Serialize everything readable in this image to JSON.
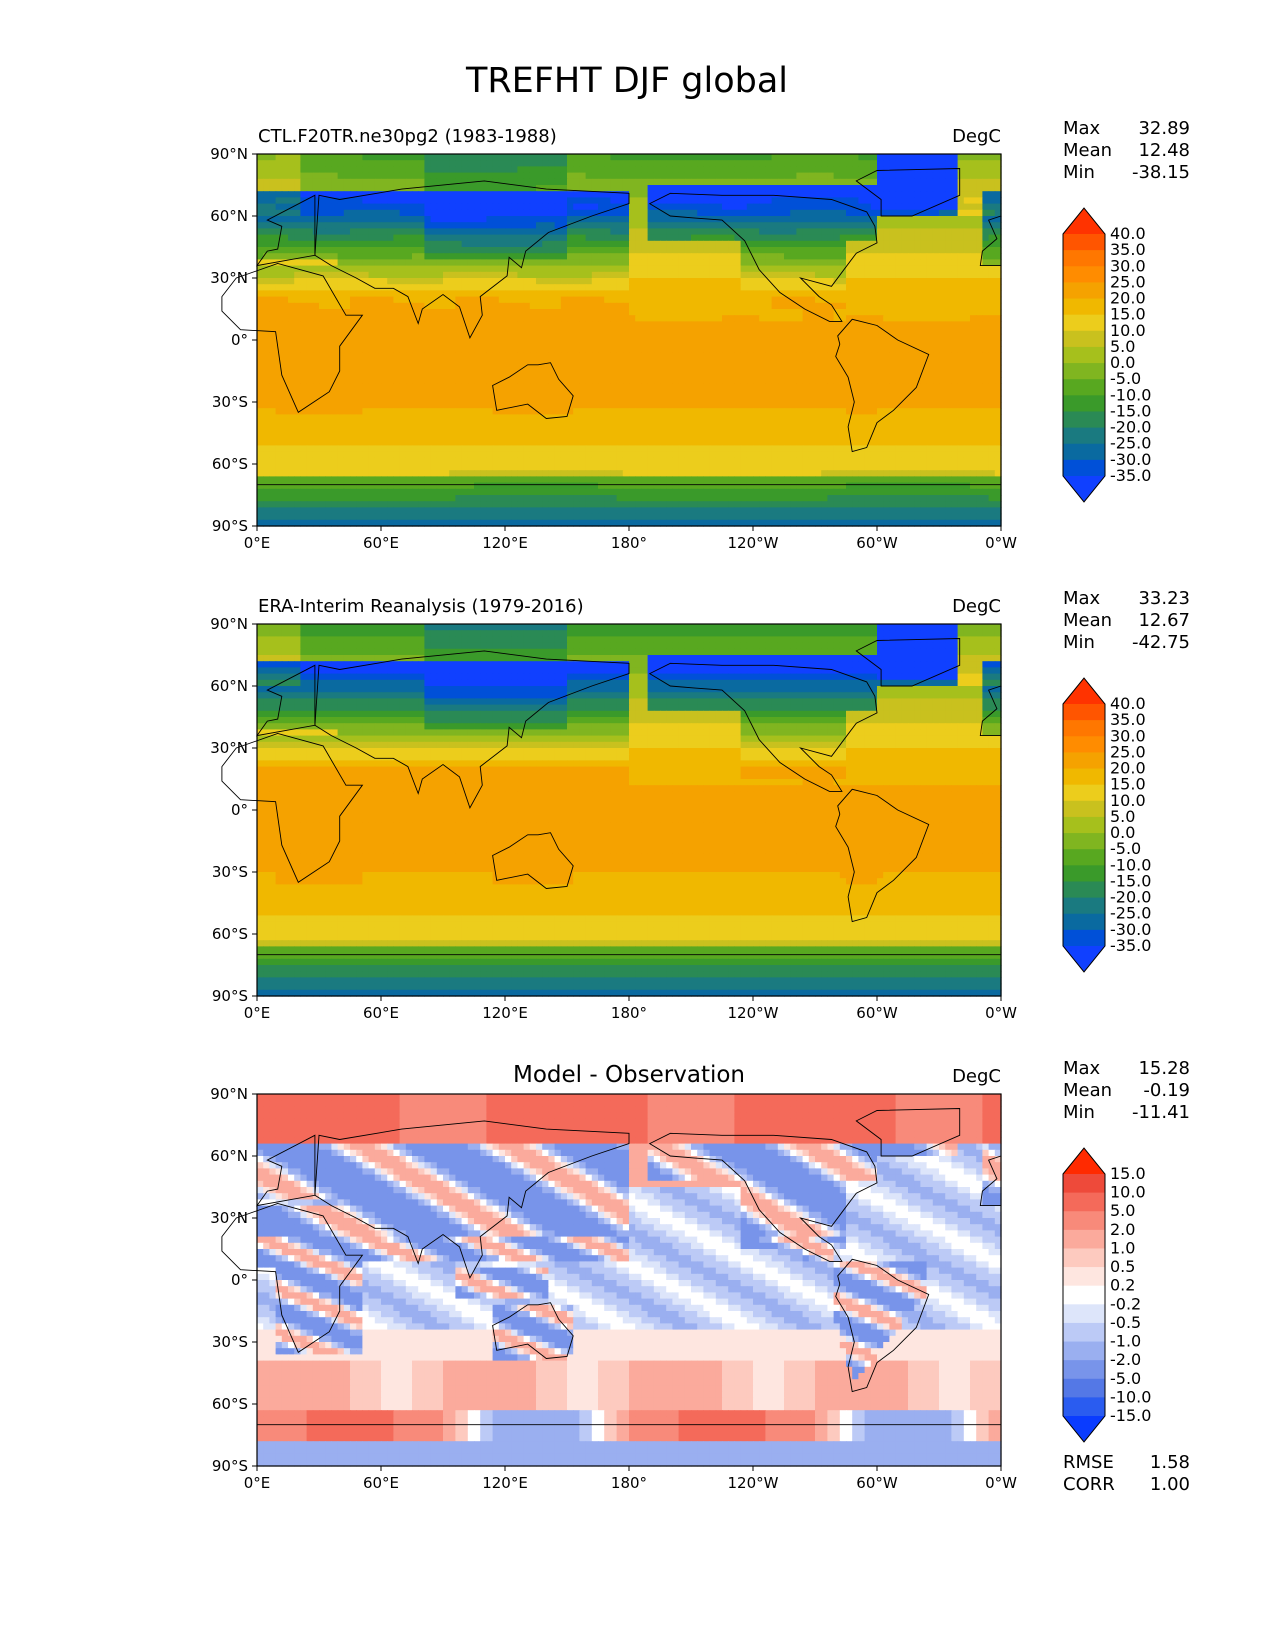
{
  "figure": {
    "title": "TREFHT DJF global"
  },
  "chart_data": [
    {
      "type": "heatmap",
      "title": "CTL.F20TR.ne30pg2 (1983-1988)",
      "units": "DegC",
      "x_ticks": [
        "0°E",
        "60°E",
        "120°E",
        "180°",
        "120°W",
        "60°W",
        "0°W"
      ],
      "y_ticks": [
        "90°N",
        "60°N",
        "30°N",
        "0°",
        "30°S",
        "60°S",
        "90°S"
      ],
      "stats": [
        {
          "label": "Max",
          "value": "32.89"
        },
        {
          "label": "Mean",
          "value": "12.48"
        },
        {
          "label": "Min",
          "value": "-38.15"
        }
      ],
      "colorbar": {
        "levels": [
          "40.0",
          "35.0",
          "30.0",
          "25.0",
          "20.0",
          "15.0",
          "10.0",
          "5.0",
          "0.0",
          "-5.0",
          "-10.0",
          "-15.0",
          "-20.0",
          "-25.0",
          "-30.0",
          "-35.0"
        ],
        "colors": [
          "#ff3300",
          "#ff5500",
          "#ff7700",
          "#ff8c00",
          "#f5a200",
          "#f0b800",
          "#eccd1c",
          "#c9c11e",
          "#a6c01c",
          "#80b520",
          "#58a820",
          "#3a9a2a",
          "#2a8a55",
          "#1a7a80",
          "#0a6aa0",
          "#0050d8",
          "#1040ff"
        ]
      }
    },
    {
      "type": "heatmap",
      "title": "ERA-Interim Reanalysis (1979-2016)",
      "units": "DegC",
      "x_ticks": [
        "0°E",
        "60°E",
        "120°E",
        "180°",
        "120°W",
        "60°W",
        "0°W"
      ],
      "y_ticks": [
        "90°N",
        "60°N",
        "30°N",
        "0°",
        "30°S",
        "60°S",
        "90°S"
      ],
      "stats": [
        {
          "label": "Max",
          "value": "33.23"
        },
        {
          "label": "Mean",
          "value": "12.67"
        },
        {
          "label": "Min",
          "value": "-42.75"
        }
      ],
      "colorbar": {
        "levels": [
          "40.0",
          "35.0",
          "30.0",
          "25.0",
          "20.0",
          "15.0",
          "10.0",
          "5.0",
          "0.0",
          "-5.0",
          "-10.0",
          "-15.0",
          "-20.0",
          "-25.0",
          "-30.0",
          "-35.0"
        ],
        "colors": [
          "#ff3300",
          "#ff5500",
          "#ff7700",
          "#ff8c00",
          "#f5a200",
          "#f0b800",
          "#eccd1c",
          "#c9c11e",
          "#a6c01c",
          "#80b520",
          "#58a820",
          "#3a9a2a",
          "#2a8a55",
          "#1a7a80",
          "#0a6aa0",
          "#0050d8",
          "#1040ff"
        ]
      }
    },
    {
      "type": "heatmap",
      "title": "Model - Observation",
      "units": "DegC",
      "x_ticks": [
        "0°E",
        "60°E",
        "120°E",
        "180°",
        "120°W",
        "60°W",
        "0°W"
      ],
      "y_ticks": [
        "90°N",
        "60°N",
        "30°N",
        "0°",
        "30°S",
        "60°S",
        "90°S"
      ],
      "stats": [
        {
          "label": "Max",
          "value": "15.28"
        },
        {
          "label": "Mean",
          "value": "-0.19"
        },
        {
          "label": "Min",
          "value": "-11.41"
        }
      ],
      "metrics": [
        {
          "label": "RMSE",
          "value": "1.58"
        },
        {
          "label": "CORR",
          "value": "1.00"
        }
      ],
      "colorbar": {
        "levels": [
          "15.0",
          "10.0",
          "5.0",
          "2.0",
          "1.0",
          "0.5",
          "0.2",
          "-0.2",
          "-0.5",
          "-1.0",
          "-2.0",
          "-5.0",
          "-10.0",
          "-15.0"
        ],
        "colors": [
          "#ff2a00",
          "#ee4a3a",
          "#f46a5a",
          "#f88a7a",
          "#fbaa9c",
          "#fdcabf",
          "#fee6e0",
          "#ffffff",
          "#dde5fa",
          "#bccaf6",
          "#9aaff0",
          "#7894ea",
          "#5478e6",
          "#2a5cf0",
          "#0a3cff"
        ]
      }
    }
  ]
}
